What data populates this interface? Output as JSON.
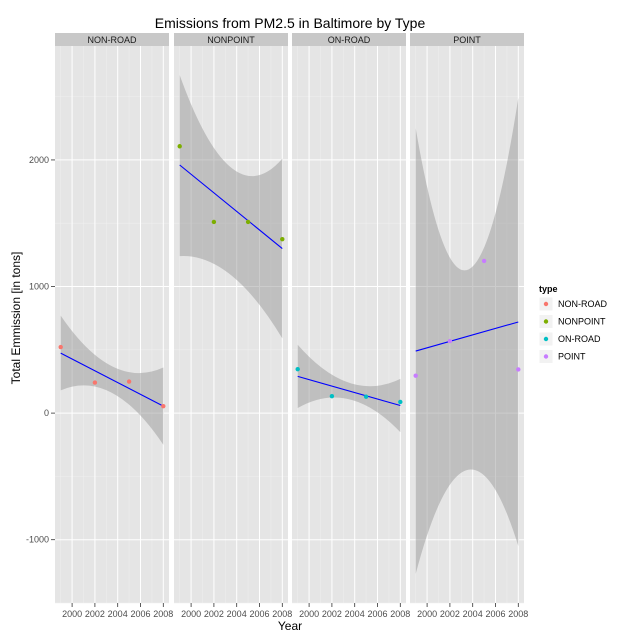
{
  "chart_data": {
    "type": "scatter",
    "title": "Emissions from PM2.5 in Baltimore by Type",
    "xlabel": "Year",
    "ylabel": "Total Emmission [in tons]",
    "xlim": [
      1998.5,
      2008.5
    ],
    "ylim": [
      -1500,
      2900
    ],
    "x_ticks": [
      2000,
      2002,
      2004,
      2006,
      2008
    ],
    "y_ticks": [
      -1000,
      0,
      1000,
      2000
    ],
    "grid": true,
    "facets": [
      "NON-ROAD",
      "NONPOINT",
      "ON-ROAD",
      "POINT"
    ],
    "legend": {
      "title": "type",
      "placement": "right",
      "items": [
        {
          "label": "NON-ROAD",
          "color": "#F8766D"
        },
        {
          "label": "NONPOINT",
          "color": "#7CAE00"
        },
        {
          "label": "ON-ROAD",
          "color": "#00BFC4"
        },
        {
          "label": "POINT",
          "color": "#C77CFF"
        }
      ]
    },
    "series": [
      {
        "name": "NON-ROAD",
        "x": [
          1999,
          2002,
          2005,
          2008
        ],
        "y": [
          522,
          241,
          249,
          55
        ],
        "fit": {
          "y_start": 474,
          "y_end": 55
        },
        "band": {
          "y_start_hi": 770,
          "y_mid_hi": 370,
          "y_end_hi": 360,
          "y_start_lo": 180,
          "y_mid_lo": 160,
          "y_end_lo": -250
        }
      },
      {
        "name": "NONPOINT",
        "x": [
          1999,
          2002,
          2005,
          2008
        ],
        "y": [
          2108,
          1510,
          1510,
          1374
        ],
        "fit": {
          "y_start": 1960,
          "y_end": 1300
        },
        "band": {
          "y_start_hi": 2670,
          "y_mid_hi": 1940,
          "y_end_hi": 2010,
          "y_start_lo": 1240,
          "y_mid_lo": 1090,
          "y_end_lo": 590
        }
      },
      {
        "name": "ON-ROAD",
        "x": [
          1999,
          2002,
          2005,
          2008
        ],
        "y": [
          347,
          134,
          130,
          88
        ],
        "fit": {
          "y_start": 290,
          "y_end": 60
        },
        "band": {
          "y_start_hi": 540,
          "y_mid_hi": 240,
          "y_end_hi": 270,
          "y_start_lo": 40,
          "y_mid_lo": 110,
          "y_end_lo": -150
        }
      },
      {
        "name": "POINT",
        "x": [
          1999,
          2002,
          2005,
          2008
        ],
        "y": [
          296,
          569,
          1202,
          345
        ],
        "fit": {
          "y_start": 490,
          "y_end": 720
        },
        "band": {
          "y_start_hi": 2250,
          "y_mid_hi": 1130,
          "y_end_hi": 2490,
          "y_start_lo": -1270,
          "y_mid_lo": -450,
          "y_end_lo": -1050
        }
      }
    ]
  }
}
